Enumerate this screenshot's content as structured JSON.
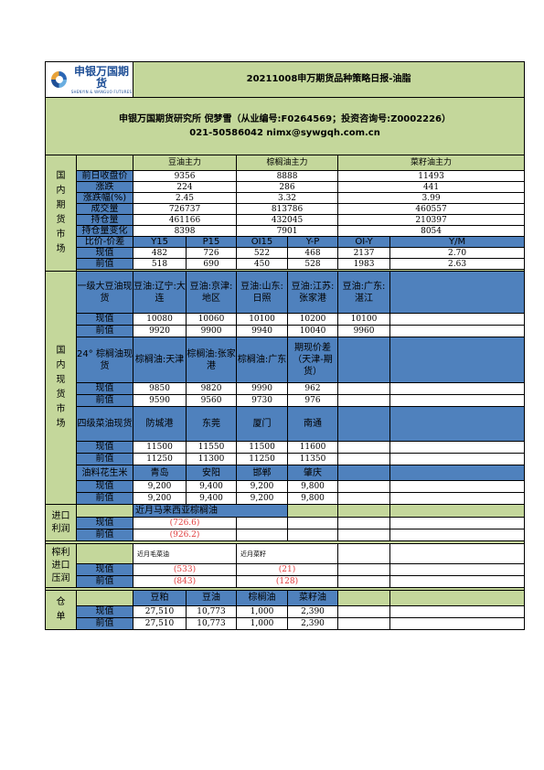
{
  "header": {
    "logo_cn": "申银万国期货",
    "logo_en": "SHENYIN & WANGUO FUTURES",
    "title": "20211008申万期货品种策略日报-油脂",
    "company_line": "申银万国期货研究所   倪梦雪（从业编号:F0264569；投资咨询号:Z0002226）",
    "contact_line": "021-50586042 nimx@sywgqh.com.cn"
  },
  "futures": {
    "section_label": "国内期货市场",
    "columns": [
      "豆油主力",
      "棕榈油主力",
      "菜籽油主力"
    ],
    "rows": [
      {
        "label": "前日收盘价",
        "values": [
          "9356",
          "8888",
          "11493"
        ]
      },
      {
        "label": "涨跌",
        "values": [
          "224",
          "286",
          "441"
        ]
      },
      {
        "label": "涨跌幅(%)",
        "values": [
          "2.45",
          "3.32",
          "3.99"
        ]
      },
      {
        "label": "成交量",
        "values": [
          "726737",
          "813786",
          "460557"
        ]
      },
      {
        "label": "持仓量",
        "values": [
          "461166",
          "432045",
          "210397"
        ]
      },
      {
        "label": "持仓量变化",
        "values": [
          "8398",
          "7901",
          "8054"
        ]
      }
    ],
    "spread_header": [
      "比价-价差",
      "Y15",
      "P15",
      "OI15",
      "Y-P",
      "OI-Y",
      "Y/M"
    ],
    "spread_rows": [
      {
        "label": "现值",
        "values": [
          "482",
          "726",
          "522",
          "468",
          "2137",
          "2.70"
        ]
      },
      {
        "label": "前值",
        "values": [
          "518",
          "690",
          "450",
          "528",
          "1983",
          "2.63"
        ]
      }
    ]
  },
  "spot": {
    "section_label": "国内现货市场",
    "soy_header": [
      "一级大豆油现货",
      "豆油:辽宁:大连",
      "豆油:京津:地区",
      "豆油:山东:日照",
      "豆油:江苏:张家港",
      "豆油:广东:湛江",
      ""
    ],
    "soy_rows": [
      {
        "label": "现值",
        "values": [
          "10080",
          "10060",
          "10100",
          "10200",
          "10100",
          ""
        ]
      },
      {
        "label": "前值",
        "values": [
          "9920",
          "9900",
          "9940",
          "10040",
          "9960",
          ""
        ]
      }
    ],
    "palm_header": [
      "24° 棕榈油现货",
      "棕榈油:天津",
      "棕榈油:张家港",
      "棕榈油:广东",
      "期现价差（天津-期货）",
      "",
      ""
    ],
    "palm_rows": [
      {
        "label": "现值",
        "values": [
          "9850",
          "9820",
          "9990",
          "962",
          "",
          ""
        ]
      },
      {
        "label": "前值",
        "values": [
          "9590",
          "9560",
          "9730",
          "976",
          "",
          ""
        ]
      }
    ],
    "rape_header": [
      "四级菜油现货",
      "防城港",
      "东莞",
      "厦门",
      "南通",
      "",
      ""
    ],
    "rape_rows": [
      {
        "label": "现值",
        "values": [
          "11500",
          "11550",
          "11500",
          "11600",
          "",
          ""
        ]
      },
      {
        "label": "前值",
        "values": [
          "11250",
          "11300",
          "11250",
          "11350",
          "",
          ""
        ]
      }
    ],
    "peanut_header": [
      "油料花生米",
      "青岛",
      "安阳",
      "邯郸",
      "肇庆",
      "",
      ""
    ],
    "peanut_rows": [
      {
        "label": "现值",
        "values": [
          "9,200",
          "9,400",
          "9,200",
          "9,800",
          "",
          ""
        ]
      },
      {
        "label": "前值",
        "values": [
          "9,200",
          "9,400",
          "9,200",
          "9,800",
          "",
          ""
        ]
      }
    ]
  },
  "import_profit": {
    "section_label": "进口利润",
    "header": "近月马来西亚棕榈油",
    "rows": [
      {
        "label": "现值",
        "value": "(726.6)"
      },
      {
        "label": "前值",
        "value": "(926.2)"
      }
    ]
  },
  "crush": {
    "section_label": "榨利进口压润",
    "header_a": "近月毛菜油",
    "header_b": "近月菜籽",
    "rows": [
      {
        "label": "现值",
        "a": "(533)",
        "b": "(21)"
      },
      {
        "label": "前值",
        "a": "(843)",
        "b": "(128)"
      }
    ]
  },
  "warehouse": {
    "section_label": "仓单",
    "columns": [
      "豆粕",
      "豆油",
      "棕榈油",
      "菜籽油"
    ],
    "rows": [
      {
        "label": "现值",
        "values": [
          "27,510",
          "10,773",
          "1,000",
          "2,390"
        ]
      },
      {
        "label": "前值",
        "values": [
          "27,510",
          "10,773",
          "1,000",
          "2,390"
        ]
      }
    ]
  },
  "colors": {
    "green": "#c4d79b",
    "blue": "#4f81bd",
    "negative": "#e03b3b"
  }
}
